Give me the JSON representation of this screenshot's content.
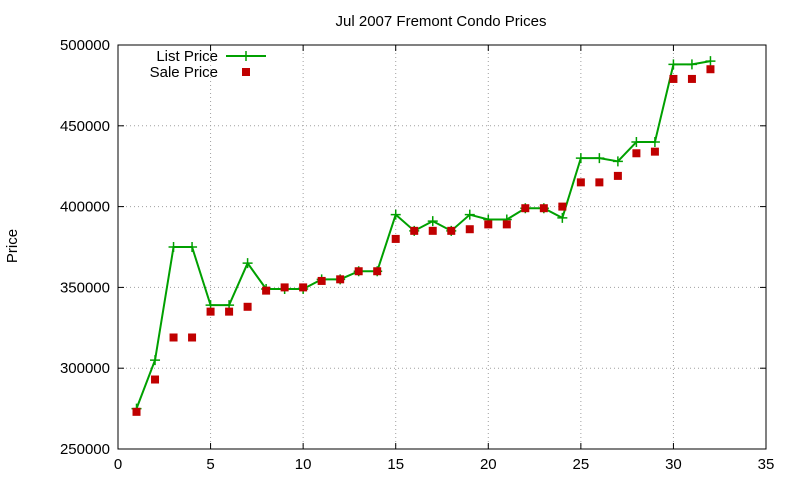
{
  "chart_data": {
    "type": "line",
    "title": "Jul 2007 Fremont Condo Prices",
    "xlabel": "",
    "ylabel": "Price",
    "xlim": [
      0,
      35
    ],
    "ylim": [
      250000,
      500000
    ],
    "xticks": [
      0,
      5,
      10,
      15,
      20,
      25,
      30,
      35
    ],
    "yticks": [
      250000,
      300000,
      350000,
      400000,
      450000,
      500000
    ],
    "grid": true,
    "legend_position": "top-left",
    "series": [
      {
        "name": "List Price",
        "style": "line-plus",
        "color": "#00a000",
        "x": [
          1,
          2,
          3,
          4,
          5,
          6,
          7,
          8,
          9,
          10,
          11,
          12,
          13,
          14,
          15,
          16,
          17,
          18,
          19,
          20,
          21,
          22,
          23,
          24,
          25,
          26,
          27,
          28,
          29,
          30,
          31,
          32
        ],
        "y": [
          275000,
          305000,
          375000,
          375000,
          339000,
          339000,
          365000,
          349000,
          349000,
          349000,
          355000,
          355000,
          360000,
          360000,
          395000,
          385000,
          391000,
          385000,
          395000,
          392000,
          392000,
          399000,
          399000,
          393000,
          430000,
          430000,
          428000,
          440000,
          440000,
          488000,
          488000,
          490000
        ]
      },
      {
        "name": "Sale Price",
        "style": "points-square",
        "color": "#c00000",
        "x": [
          1,
          2,
          3,
          4,
          5,
          6,
          7,
          8,
          9,
          10,
          11,
          12,
          13,
          14,
          15,
          16,
          17,
          18,
          19,
          20,
          21,
          22,
          23,
          24,
          25,
          26,
          27,
          28,
          29,
          30,
          31,
          32
        ],
        "y": [
          273000,
          293000,
          319000,
          319000,
          335000,
          335000,
          338000,
          348000,
          350000,
          350000,
          354000,
          355000,
          360000,
          360000,
          380000,
          385000,
          385000,
          385000,
          386000,
          389000,
          389000,
          399000,
          399000,
          400000,
          415000,
          415000,
          419000,
          433000,
          434000,
          479000,
          479000,
          485000
        ]
      }
    ]
  }
}
